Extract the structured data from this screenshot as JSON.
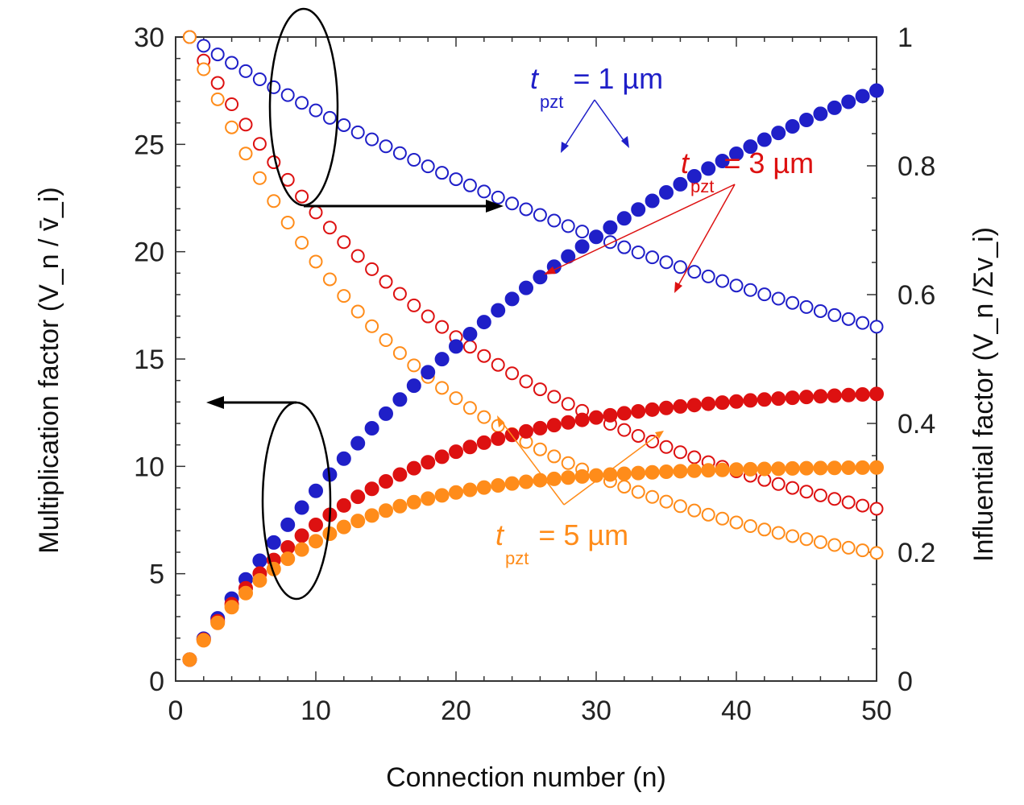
{
  "chart_data": {
    "type": "scatter",
    "xlabel": "Connection number (n)",
    "ylabel_left": "Multiplication factor (V_n / v̄_i)",
    "ylabel_right": "Influential factor (V_n /Σv_i)",
    "xlim": [
      0,
      50
    ],
    "ylim_left": [
      0,
      30
    ],
    "ylim_right": [
      0,
      1
    ],
    "x_ticks": [
      "0",
      "10",
      "20",
      "30",
      "40",
      "50"
    ],
    "y_left_ticks": [
      "0",
      "5",
      "10",
      "15",
      "20",
      "25",
      "30"
    ],
    "y_right_ticks": [
      "0",
      "0.2",
      "0.4",
      "0.6",
      "0.8",
      "1"
    ],
    "colors": {
      "t1": "#1f1fc8",
      "t3": "#dd1111",
      "t5": "#ff8c1a",
      "axis": "#333333"
    },
    "series": [
      {
        "name": "t_pzt = 1 µm (multiplication, left axis)",
        "axis": "left",
        "marker": "filled",
        "color_key": "t1",
        "model": {
          "kind": "saturating",
          "plateau": 39.0,
          "k": 0.0272
        }
      },
      {
        "name": "t_pzt = 3 µm (multiplication, left axis)",
        "axis": "left",
        "marker": "filled",
        "color_key": "t3",
        "model": {
          "kind": "saturating",
          "plateau": 18.3,
          "k": 0.0731
        }
      },
      {
        "name": "t_pzt = 5 µm (multiplication, left axis)",
        "axis": "left",
        "marker": "filled",
        "color_key": "t5",
        "model": {
          "kind": "saturating",
          "plateau": 14.2,
          "k": 0.1
        }
      },
      {
        "name": "t_pzt = 1 µm (influential, right axis)",
        "axis": "right",
        "marker": "open",
        "color_key": "t1",
        "model": {
          "kind": "ratio",
          "plateau": 39.0,
          "k": 0.0272,
          "ref": 30
        }
      },
      {
        "name": "t_pzt = 3 µm (influential, right axis)",
        "axis": "right",
        "marker": "open",
        "color_key": "t3",
        "model": {
          "kind": "ratio",
          "plateau": 18.3,
          "k": 0.0731,
          "ref": 30
        }
      },
      {
        "name": "t_pzt = 5 µm (influential, right axis)",
        "axis": "right",
        "marker": "open",
        "color_key": "t5",
        "model": {
          "kind": "ratio",
          "plateau": 14.2,
          "k": 0.1,
          "ref": 30
        }
      }
    ],
    "x_values": {
      "start": 1,
      "end": 50,
      "step": 1
    },
    "annotations": {
      "t1": {
        "t": "t",
        "sub": "pzt",
        "rest": "= 1 µm"
      },
      "t3": {
        "t": "t",
        "sub": "pzt",
        "rest": "= 3 µm"
      },
      "t5": {
        "t": "t",
        "sub": "pzt",
        "rest": "= 5 µm"
      }
    },
    "legend": "annotations inside plot"
  }
}
